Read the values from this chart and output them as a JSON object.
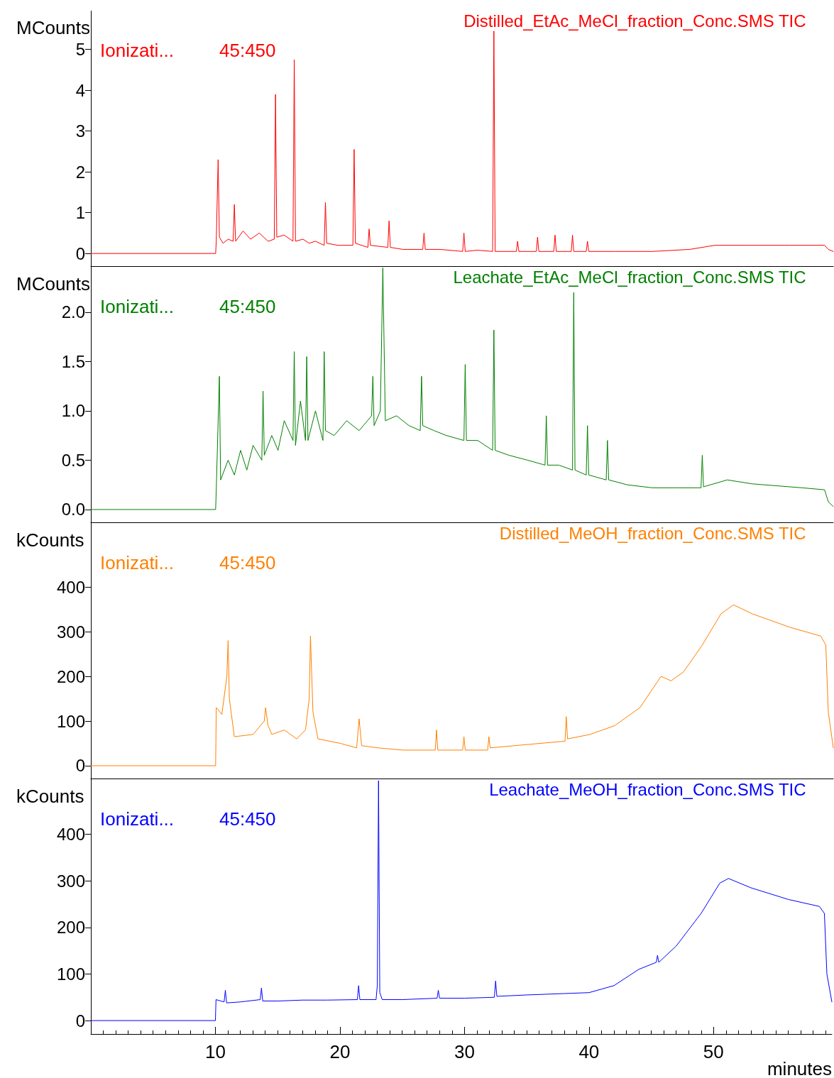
{
  "chart_data": [
    {
      "type": "line",
      "title": "Distilled_EtAc_MeCl_fraction_Conc.SMS TIC",
      "ylabel": "MCounts",
      "annotations": [
        "Ionizati...",
        "45:450"
      ],
      "xlim": [
        0,
        59.5
      ],
      "xticks": [
        10,
        20,
        30,
        40,
        50
      ],
      "ylim": [
        -0.31,
        5.95
      ],
      "yticks": [
        0,
        1,
        2,
        3,
        4,
        5
      ],
      "tick_labels": "y",
      "marker": "none",
      "x": [
        0,
        10.0,
        10.05,
        10.2,
        10.3,
        10.6,
        11.0,
        11.4,
        11.5,
        11.6,
        12.2,
        12.8,
        13.5,
        14.2,
        14.7,
        14.8,
        14.9,
        15.5,
        16.2,
        16.3,
        16.4,
        17.0,
        17.5,
        18.0,
        18.7,
        18.8,
        18.9,
        19.8,
        21.0,
        21.1,
        21.2,
        22.2,
        22.3,
        22.4,
        23.8,
        23.9,
        24.0,
        25.0,
        26.6,
        26.7,
        26.8,
        28.0,
        29.8,
        29.9,
        30.0,
        31.0,
        32.2,
        32.3,
        32.4,
        33.5,
        34.1,
        34.2,
        34.3,
        35.7,
        35.8,
        35.9,
        37.1,
        37.2,
        37.3,
        38.5,
        38.6,
        38.7,
        39.7,
        39.8,
        39.9,
        42,
        45,
        48,
        50,
        53,
        56,
        58.8,
        59.1,
        59.5
      ],
      "series": [
        {
          "color": "#ff0000",
          "values": [
            0,
            0,
            0.3,
            2.3,
            0.4,
            0.25,
            0.35,
            0.3,
            1.2,
            0.3,
            0.55,
            0.35,
            0.5,
            0.3,
            0.35,
            3.9,
            0.4,
            0.45,
            0.3,
            4.75,
            0.3,
            0.35,
            0.25,
            0.3,
            0.2,
            1.25,
            0.25,
            0.2,
            0.2,
            2.55,
            0.25,
            0.15,
            0.6,
            0.2,
            0.15,
            0.8,
            0.15,
            0.1,
            0.1,
            0.5,
            0.1,
            0.1,
            0.05,
            0.5,
            0.05,
            0.08,
            0.05,
            5.45,
            0.05,
            0.05,
            0.05,
            0.3,
            0.05,
            0.05,
            0.4,
            0.05,
            0.05,
            0.45,
            0.05,
            0.05,
            0.45,
            0.05,
            0.05,
            0.3,
            0.05,
            0.05,
            0.05,
            0.1,
            0.2,
            0.2,
            0.2,
            0.2,
            0.1,
            0.05
          ]
        }
      ]
    },
    {
      "type": "line",
      "title": "Leachate_EtAc_MeCl_fraction_Conc.SMS TIC",
      "ylabel": "MCounts",
      "annotations": [
        "Ionizati...",
        "45:450"
      ],
      "xlim": [
        0,
        59.5
      ],
      "xticks": [
        10,
        20,
        30,
        40,
        50
      ],
      "ylim": [
        -0.13,
        2.46
      ],
      "yticks": [
        {
          "value": 0,
          "label": "0.0"
        },
        0.5,
        {
          "value": 1,
          "label": "1.0"
        },
        1.5,
        {
          "value": 2,
          "label": "2.0"
        }
      ],
      "tick_labels": "y",
      "marker": "none",
      "x": [
        0,
        10.0,
        10.05,
        10.3,
        10.4,
        11.0,
        11.5,
        12.0,
        12.5,
        13.0,
        13.7,
        13.8,
        13.9,
        14.5,
        15.0,
        15.5,
        16.2,
        16.3,
        16.4,
        16.8,
        17.2,
        17.3,
        17.4,
        18.0,
        18.6,
        18.7,
        18.8,
        19.5,
        20.5,
        21.5,
        22.5,
        22.6,
        22.7,
        23.2,
        23.4,
        23.6,
        24.5,
        25.5,
        26.4,
        26.5,
        26.6,
        27.5,
        28.5,
        29.9,
        30.0,
        30.1,
        31.0,
        32.2,
        32.3,
        32.4,
        33.5,
        35.0,
        36.4,
        36.5,
        36.6,
        37.5,
        38.6,
        38.7,
        38.8,
        39.7,
        39.8,
        39.9,
        41.3,
        41.4,
        41.5,
        43,
        45,
        47,
        48.9,
        49.0,
        49.1,
        51,
        53,
        55,
        57,
        58.8,
        59.1,
        59.5
      ],
      "series": [
        {
          "color": "#008000",
          "values": [
            0,
            0,
            0.2,
            1.35,
            0.3,
            0.5,
            0.35,
            0.6,
            0.4,
            0.65,
            0.5,
            1.2,
            0.55,
            0.75,
            0.6,
            0.9,
            0.7,
            1.6,
            0.65,
            1.1,
            0.7,
            1.55,
            0.7,
            1.0,
            0.7,
            1.6,
            0.8,
            0.75,
            0.9,
            0.8,
            0.95,
            1.35,
            0.85,
            1.0,
            2.45,
            0.9,
            0.95,
            0.85,
            0.8,
            1.35,
            0.85,
            0.8,
            0.75,
            0.7,
            1.47,
            0.7,
            0.7,
            0.6,
            1.82,
            0.6,
            0.55,
            0.5,
            0.45,
            0.95,
            0.45,
            0.45,
            0.4,
            2.2,
            0.4,
            0.35,
            0.85,
            0.35,
            0.3,
            0.7,
            0.3,
            0.25,
            0.22,
            0.22,
            0.22,
            0.55,
            0.23,
            0.3,
            0.26,
            0.24,
            0.22,
            0.2,
            0.08,
            0.03
          ]
        }
      ]
    },
    {
      "type": "line",
      "title": "Distilled_MeOH_fraction_Conc.SMS TIC",
      "ylabel": "kCounts",
      "annotations": [
        "Ionizati...",
        "45:450"
      ],
      "xlim": [
        0,
        59.5
      ],
      "xticks": [
        10,
        20,
        30,
        40,
        50
      ],
      "ylim": [
        -28.6,
        543
      ],
      "yticks": [
        0,
        100,
        200,
        300,
        400
      ],
      "tick_labels": "y",
      "marker": "none",
      "x": [
        0,
        10.0,
        10.05,
        10.5,
        10.9,
        11.0,
        11.1,
        11.5,
        13.0,
        13.9,
        14.0,
        14.2,
        14.5,
        15.5,
        16.5,
        17.2,
        17.5,
        17.6,
        17.8,
        18.2,
        20,
        21.3,
        21.5,
        21.7,
        23,
        25,
        27.6,
        27.7,
        27.8,
        29.8,
        29.9,
        30.0,
        31.8,
        31.9,
        32.0,
        34,
        36,
        38.0,
        38.1,
        38.2,
        40,
        42,
        44,
        45.7,
        46.5,
        47.5,
        49,
        50.5,
        51.5,
        53,
        56,
        58.5,
        58.9,
        59.1,
        59.5
      ],
      "series": [
        {
          "color": "#ff8000",
          "values": [
            0,
            0,
            130,
            115,
            200,
            280,
            150,
            65,
            70,
            100,
            130,
            90,
            70,
            80,
            60,
            80,
            150,
            290,
            120,
            60,
            50,
            40,
            105,
            45,
            40,
            35,
            35,
            80,
            35,
            35,
            65,
            35,
            35,
            65,
            40,
            45,
            50,
            55,
            110,
            60,
            70,
            90,
            130,
            200,
            190,
            210,
            270,
            340,
            360,
            340,
            310,
            290,
            270,
            120,
            40
          ]
        }
      ]
    },
    {
      "type": "line",
      "title": "Leachate_MeOH_fraction_Conc.SMS TIC",
      "ylabel": "kCounts",
      "xlabel": "minutes",
      "annotations": [
        "Ionizati...",
        "45:450"
      ],
      "xlim": [
        0,
        59.5
      ],
      "xticks": [
        10,
        20,
        30,
        40,
        50
      ],
      "ylim": [
        -28.8,
        518
      ],
      "yticks": [
        0,
        100,
        200,
        300,
        400
      ],
      "marker": "none",
      "x": [
        0,
        10.0,
        10.05,
        10.7,
        10.8,
        10.9,
        12,
        13.6,
        13.7,
        13.8,
        15,
        17,
        19,
        21.4,
        21.5,
        21.6,
        22.9,
        23.0,
        23.1,
        23.2,
        23.4,
        25,
        27.8,
        27.9,
        28,
        30,
        32.4,
        32.5,
        32.6,
        35,
        38,
        40,
        42,
        44,
        45.4,
        45.5,
        45.6,
        47,
        48,
        49,
        50.5,
        51.2,
        53,
        56,
        58.5,
        58.9,
        59.1,
        59.5
      ],
      "series": [
        {
          "color": "#0000ff",
          "values": [
            0,
            0,
            45,
            40,
            65,
            38,
            40,
            45,
            70,
            42,
            42,
            44,
            44,
            45,
            75,
            45,
            45,
            75,
            515,
            60,
            45,
            45,
            48,
            65,
            48,
            48,
            50,
            85,
            52,
            55,
            58,
            60,
            75,
            110,
            125,
            140,
            125,
            160,
            195,
            230,
            295,
            305,
            285,
            260,
            245,
            230,
            100,
            40
          ]
        }
      ]
    }
  ]
}
